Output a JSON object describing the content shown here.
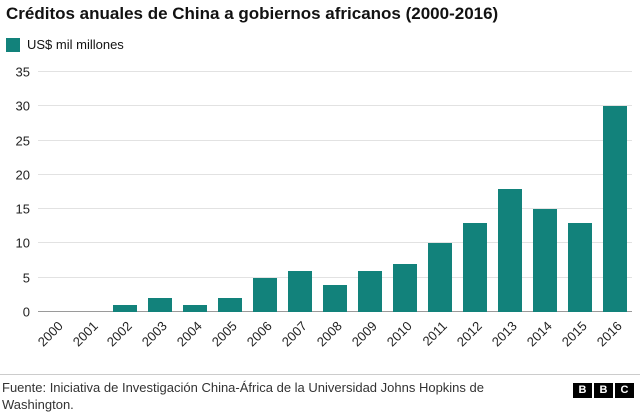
{
  "title": "Créditos anuales de China a gobiernos africanos (2000-2016)",
  "legend": {
    "label": "US$ mil millones"
  },
  "footer": {
    "source": "Fuente: Iniciativa de Investigación China-África de la Universidad Johns Hopkins de Washington.",
    "logo_letters": [
      "B",
      "B",
      "C"
    ]
  },
  "chart_data": {
    "type": "bar",
    "categories": [
      "2000",
      "2001",
      "2002",
      "2003",
      "2004",
      "2005",
      "2006",
      "2007",
      "2008",
      "2009",
      "2010",
      "2011",
      "2012",
      "2013",
      "2014",
      "2015",
      "2016"
    ],
    "values": [
      0,
      0,
      1,
      2,
      1,
      2,
      5,
      6,
      4,
      6,
      7,
      10,
      13,
      18,
      15,
      13,
      30
    ],
    "title": "Créditos anuales de China a gobiernos africanos (2000-2016)",
    "xlabel": "",
    "ylabel": "US$ mil millones",
    "ylim": [
      0,
      35
    ],
    "yticks": [
      0,
      5,
      10,
      15,
      20,
      25,
      30,
      35
    ],
    "bar_color": "#12827b",
    "grid": true,
    "legend_position": "top-left"
  }
}
